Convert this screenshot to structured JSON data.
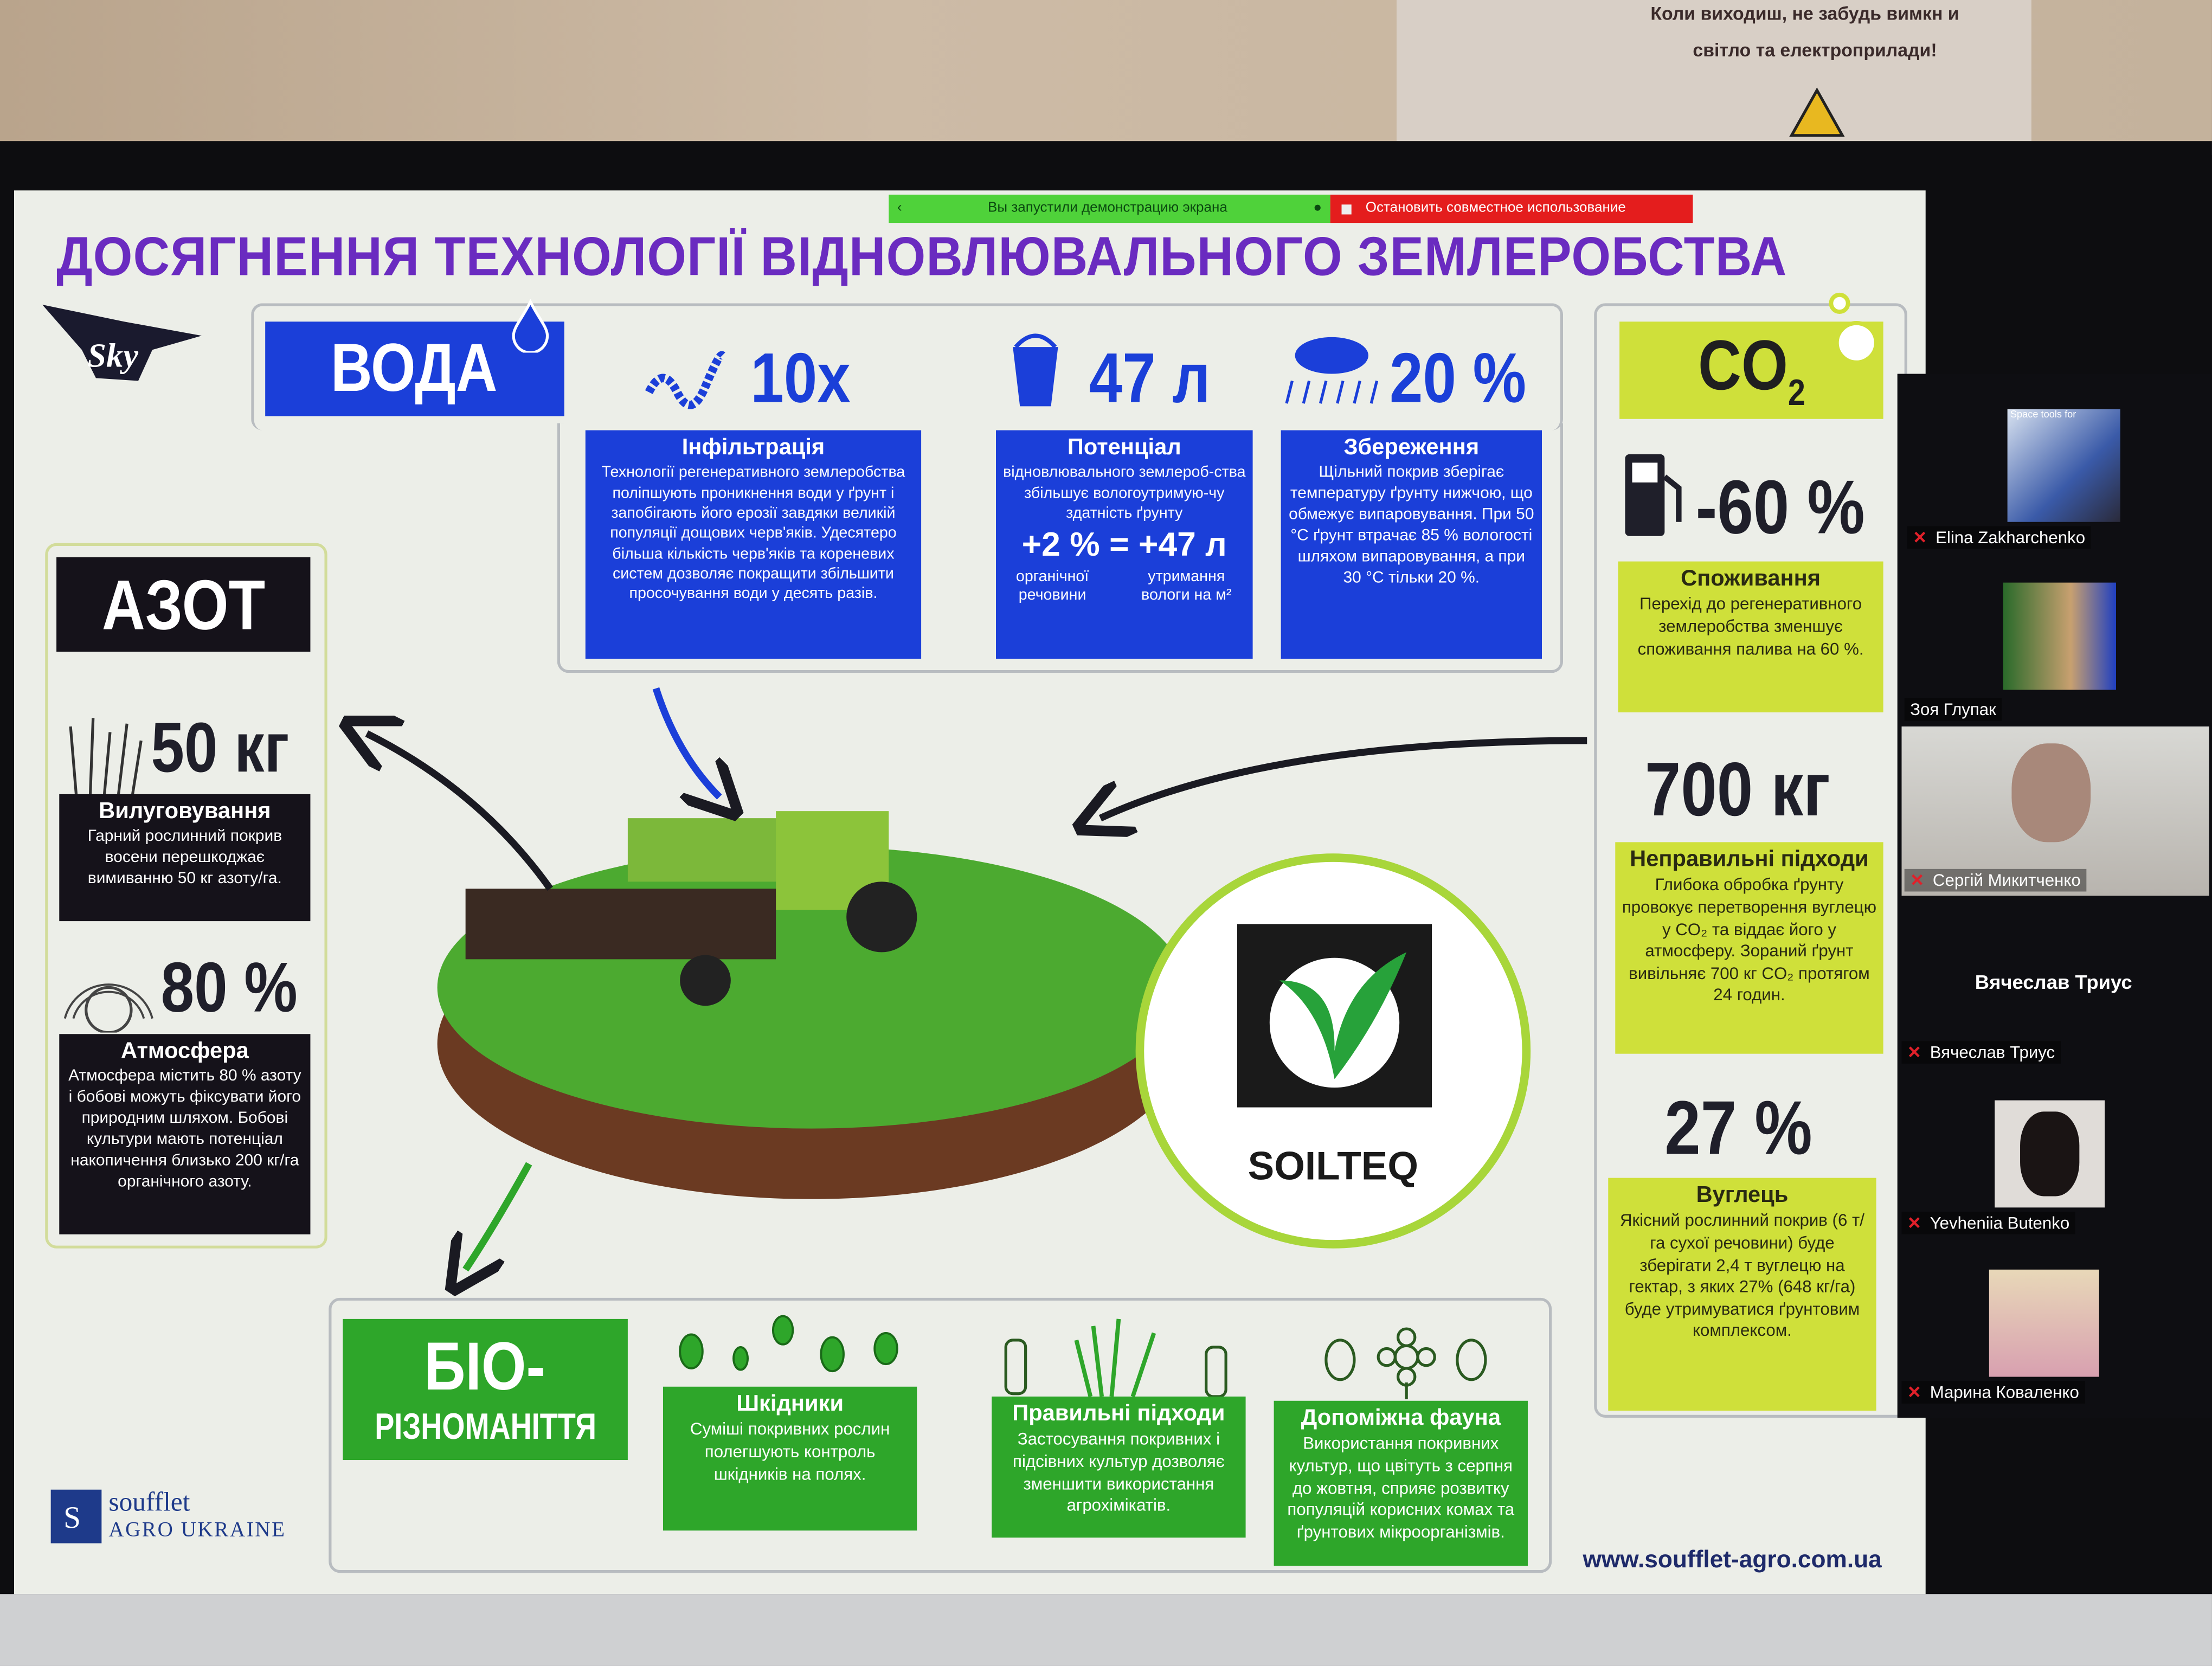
{
  "wall_sign": {
    "line1": "Коли виходиш, не забудь вимкн   и",
    "line2": "світло та електроприлади!"
  },
  "share_bar": {
    "status": "Вы запустили демонстрацию экрана",
    "stop_button": "Остановить совместное использование",
    "status_color": "#4fd23a",
    "stop_color": "#e41d1d"
  },
  "slide": {
    "title": "ДОСЯГНЕННЯ ТЕХНОЛОГІЇ ВІДНОВЛЮВАЛЬНОГО ЗЕМЛЕРОБСТВА",
    "logo_sky": "Sky Agriculture",
    "water": {
      "header": "ВОДА",
      "stats": [
        {
          "icon": "worm-icon",
          "value": "10x",
          "title": "Інфільтрація",
          "text": "Технології регенеративного землеробства поліпшують проникнення води у ґрунт і запобігають його ерозії завдяки великій популяції дощових черв'яків. Удесятеро більша кількість черв'яків та кореневих систем дозволяє покращити збільшити просочування води у десять разів."
        },
        {
          "icon": "bucket-icon",
          "value": "47 л",
          "title": "Потенціал",
          "text": "відновлювального землероб-ства збільшує вологоутримую-чу здатність ґрунту",
          "formula": "+2 % = +47 л",
          "left_caption": "органічної речовини",
          "right_caption": "утримання вологи на м²"
        },
        {
          "icon": "rain-cloud-icon",
          "value": "20 %",
          "title": "Збереження",
          "text": "Щільний покрив зберігає температуру ґрунту нижчою, що обмежує випаровування. При 50 °С ґрунт втрачає 85 % вологості шляхом випаровування, а при 30 °С тільки 20 %."
        }
      ]
    },
    "nitrogen": {
      "header": "АЗОТ",
      "stats": [
        {
          "icon": "grass-icon",
          "value": "50 кг",
          "title": "Вилуговування",
          "text": "Гарний рослинний покрив восени перешкоджає вимиванню 50 кг азоту/га."
        },
        {
          "icon": "globe-icon",
          "value": "80 %",
          "title": "Атмосфера",
          "text": "Атмосфера містить 80 % азоту і бобові можуть фіксувати його природним шляхом. Бобові культури мають потенціал накопичення близько 200 кг/га органічного азоту."
        }
      ]
    },
    "co2": {
      "header": "CO",
      "header_sub": "2",
      "stats": [
        {
          "icon": "fuel-pump-icon",
          "value": "-60 %",
          "title": "Споживання",
          "text": "Перехід до регенеративного землеробства зменшує споживання палива на 60 %."
        },
        {
          "value": "700 кг",
          "title": "Неправильні підходи",
          "text": "Глибока обробка ґрунту провокує перетворення вуглецю у CO₂ та віддає його у атмосферу. Зораний ґрунт вивільняє 700 кг CO₂ протягом 24 годин."
        },
        {
          "value": "27 %",
          "title": "Вуглець",
          "text": "Якісний рослинний покрив (6 т/га сухої речовини) буде зберігати 2,4 т вуглецю на гектар, з яких 27% (648 кг/га) буде утримуватися ґрунтовим комплексом."
        }
      ]
    },
    "bio": {
      "header_line1": "БІО-",
      "header_line2": "РІЗНОМАНІТТЯ",
      "cards": [
        {
          "icon": "bugs-icon",
          "title": "Шкідники",
          "text": "Суміші покривних рослин полегшують контроль шкідників на полях."
        },
        {
          "icon": "sprayer-grass-icon",
          "title": "Правильні підходи",
          "text": "Застосування покривних і підсівних культур дозволяє зменшити використання агрохімікатів."
        },
        {
          "icon": "bee-flower-icon",
          "title": "Допоміжна фауна",
          "text": "Використання покривних культур, що цвітуть з серпня до жовтня, сприяє розвитку популяцій корисних комах та ґрунтових мікроорганізмів."
        }
      ]
    },
    "soilteq": "SOILTEQ",
    "soufflet_line1": "soufflet",
    "soufflet_line2": "AGRO UKRAINE",
    "url": "www.soufflet-agro.com.ua",
    "colors": {
      "title": "#6a2bc0",
      "water": "#1b3fd9",
      "nitrogen": "#15121a",
      "co2": "#cfe03a",
      "bio": "#2ea62a"
    }
  },
  "participants": [
    {
      "name": "Elina Zakharchenko",
      "muted": true,
      "video_caption": "Space tools for"
    },
    {
      "name": "Зоя Глупак",
      "muted": false
    },
    {
      "name": "Сергій Микитченко",
      "muted": true,
      "active": true
    },
    {
      "name": "Вячеслав Триус",
      "muted": true,
      "no_video_label": "Вячеслав Триус"
    },
    {
      "name": "Yevheniia Butenko",
      "muted": true
    },
    {
      "name": "Марина Коваленко",
      "muted": true
    }
  ]
}
